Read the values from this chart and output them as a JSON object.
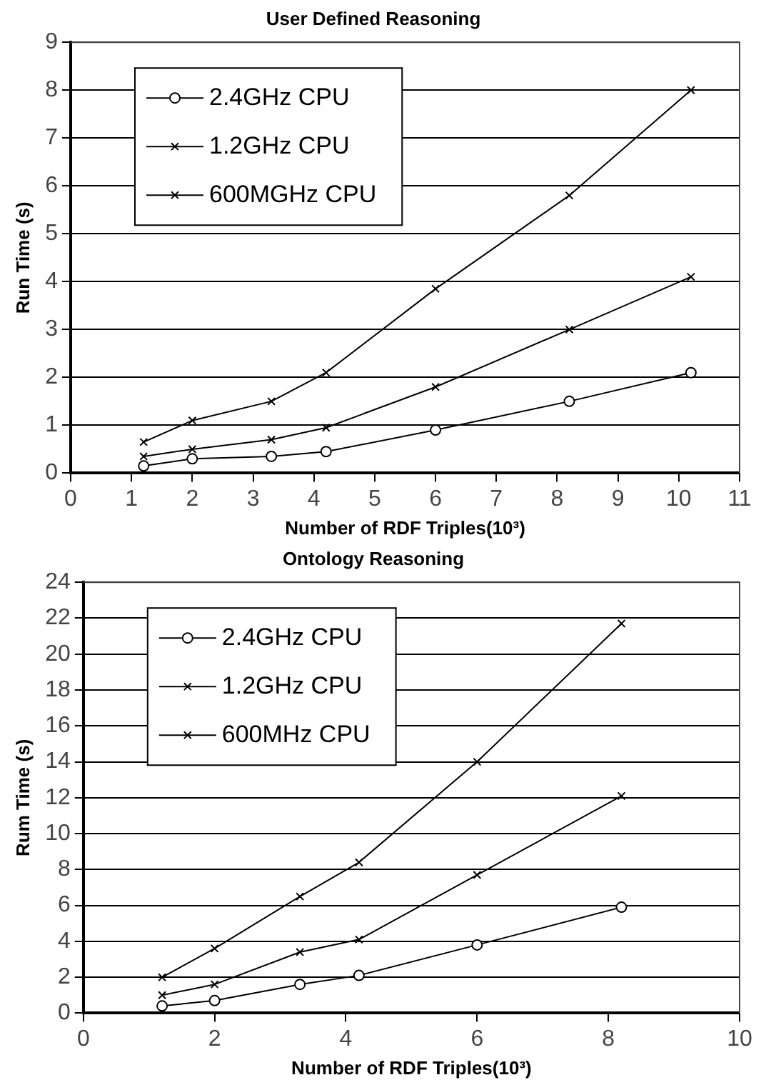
{
  "chart_data": [
    {
      "type": "line",
      "title": "User Defined Reasoning",
      "xlabel": "Number of RDF Triples(10³)",
      "ylabel": "Run Time (s)",
      "x": [
        1.2,
        2.0,
        3.3,
        4.2,
        6.0,
        8.2,
        10.2
      ],
      "series": [
        {
          "name": "2.4GHz CPU",
          "color": "#000000",
          "marker": "circle",
          "values": [
            0.15,
            0.3,
            0.35,
            0.45,
            0.9,
            1.5,
            2.1
          ]
        },
        {
          "name": "1.2GHz CPU",
          "color": "#000000",
          "marker": "cross",
          "values": [
            0.35,
            0.5,
            0.7,
            0.95,
            1.8,
            3.0,
            4.1
          ]
        },
        {
          "name": "600MGHz CPU",
          "color": "#000000",
          "marker": "cross",
          "values": [
            0.65,
            1.1,
            1.5,
            2.1,
            3.85,
            5.8,
            8.0
          ]
        }
      ],
      "xlim": [
        0,
        11
      ],
      "xticks": [
        0,
        1,
        2,
        3,
        4,
        5,
        6,
        7,
        8,
        9,
        10,
        11
      ],
      "ylim": [
        0,
        9
      ],
      "yticks": [
        0,
        1,
        2,
        3,
        4,
        5,
        6,
        7,
        8,
        9
      ],
      "grid": "y",
      "legend": "top left"
    },
    {
      "type": "line",
      "title": "Ontology Reasoning",
      "xlabel": "Number of RDF Triples(10³)",
      "ylabel": "Rum Time (s)",
      "x": [
        1.2,
        2.0,
        3.3,
        4.2,
        6.0,
        8.2
      ],
      "series": [
        {
          "name": "2.4GHz CPU",
          "color": "#000000",
          "marker": "circle",
          "values": [
            0.4,
            0.7,
            1.6,
            2.1,
            3.8,
            5.9
          ]
        },
        {
          "name": "1.2GHz CPU",
          "color": "#000000",
          "marker": "cross",
          "values": [
            1.0,
            1.6,
            3.4,
            4.1,
            7.7,
            12.1
          ]
        },
        {
          "name": "600MHz CPU",
          "color": "#000000",
          "marker": "cross",
          "values": [
            2.0,
            3.6,
            6.5,
            8.4,
            14.0,
            21.7
          ]
        }
      ],
      "xlim": [
        0,
        10
      ],
      "xticks": [
        0,
        2,
        4,
        6,
        8,
        10
      ],
      "ylim": [
        0,
        24
      ],
      "yticks": [
        0,
        2,
        4,
        6,
        8,
        10,
        12,
        14,
        16,
        18,
        20,
        22,
        24
      ],
      "grid": "y",
      "legend": "top left"
    }
  ]
}
